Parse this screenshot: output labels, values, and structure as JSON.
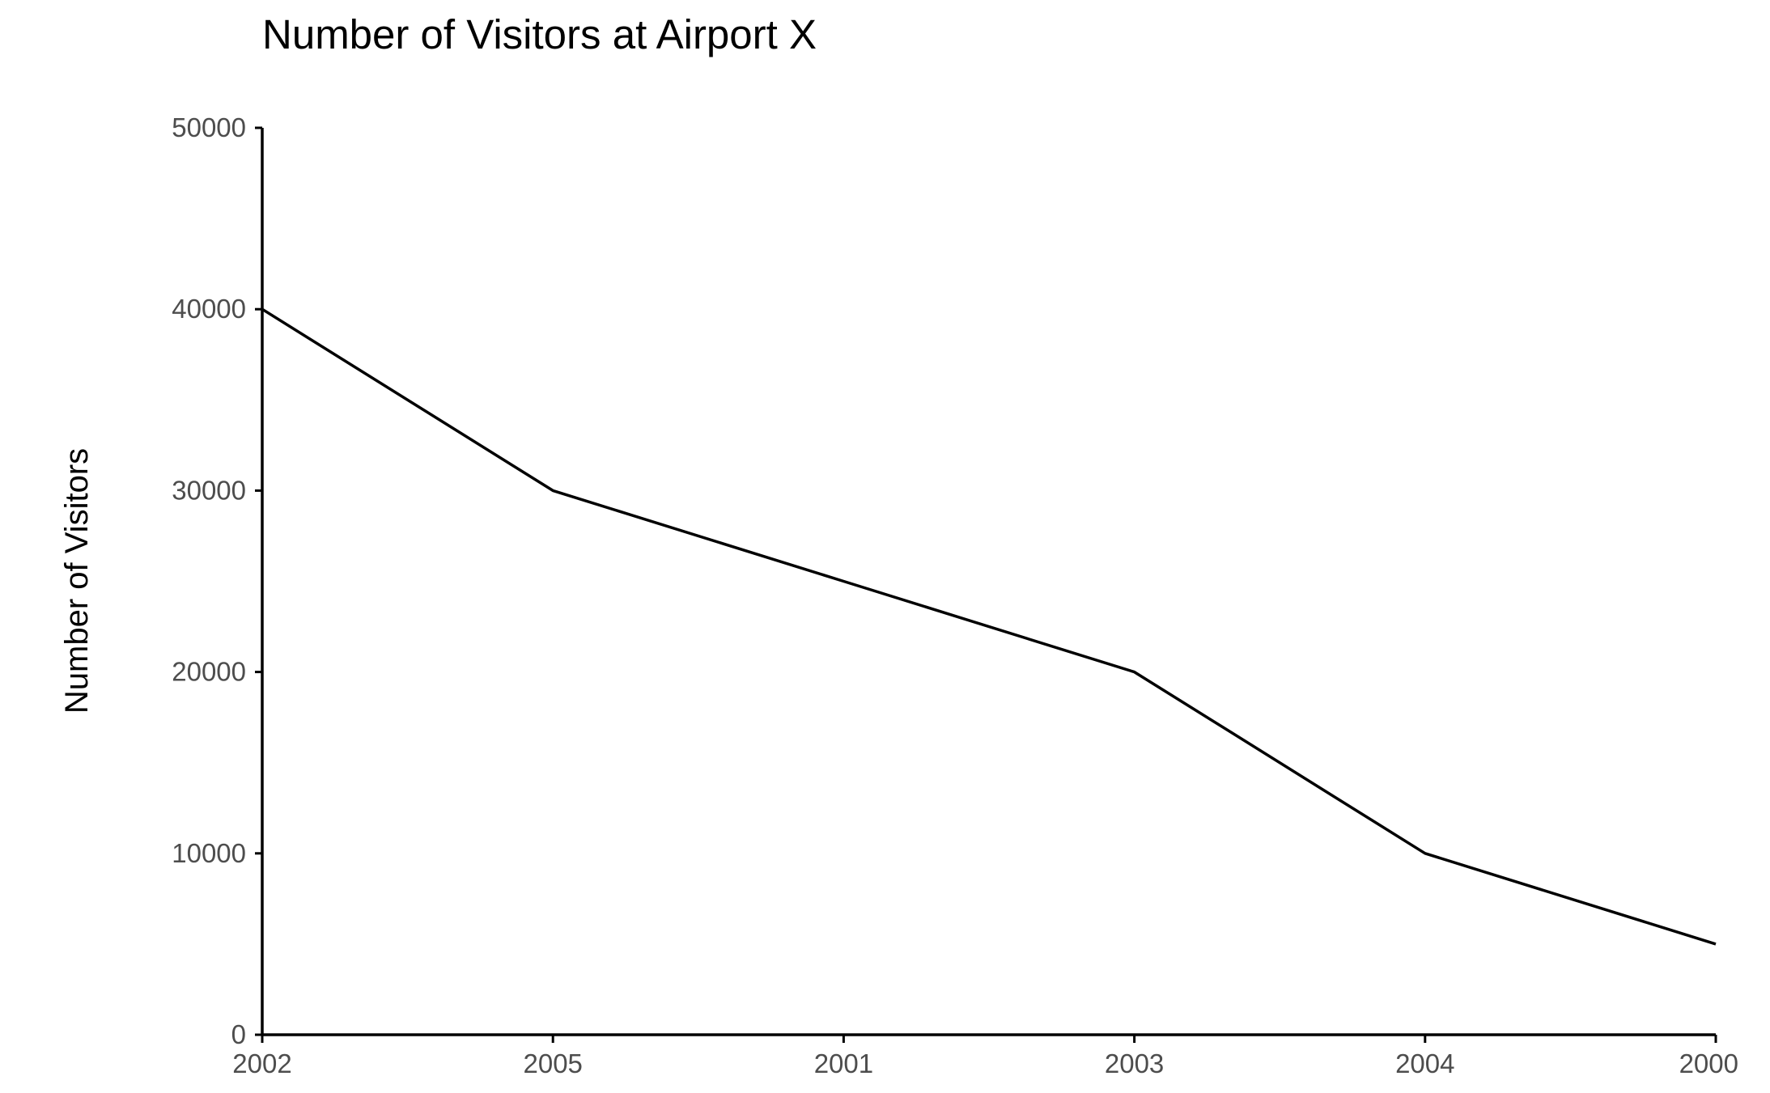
{
  "chart_data": {
    "type": "line",
    "title": "Number of Visitors at Airport X",
    "xlabel": "",
    "ylabel": "Number of Visitors",
    "categories": [
      "2002",
      "2005",
      "2001",
      "2003",
      "2004",
      "2000"
    ],
    "series": [
      {
        "name": "Number of Visitors",
        "values": [
          40000,
          30000,
          25000,
          20000,
          10000,
          5000
        ]
      }
    ],
    "yticks": [
      0,
      10000,
      20000,
      30000,
      40000,
      50000
    ],
    "ylim": [
      0,
      50000
    ],
    "grid": false,
    "legend": "none",
    "colors": {
      "line": "#000000",
      "axis": "#000000",
      "tick_text": "#4d4d4d"
    }
  }
}
